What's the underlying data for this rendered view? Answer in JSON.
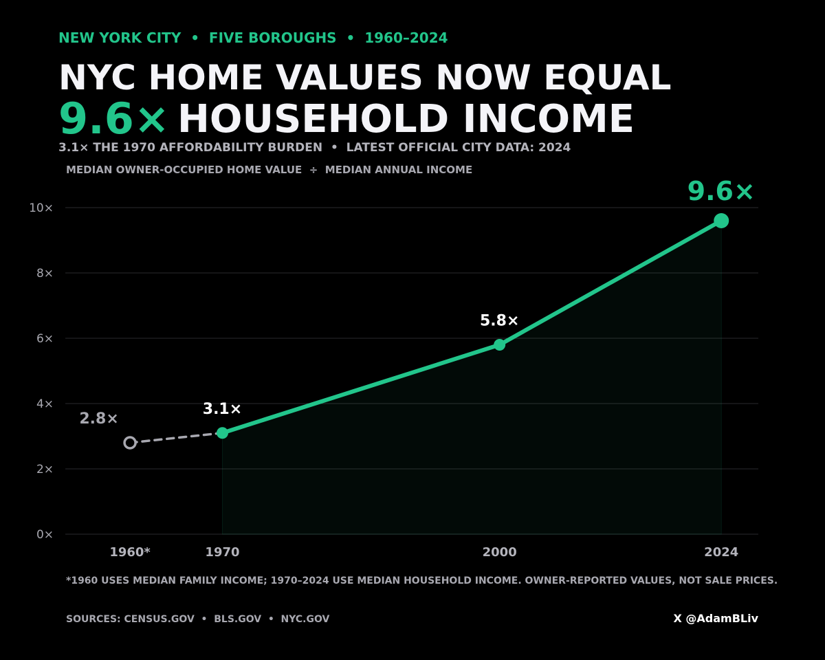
{
  "chart_data": {
    "type": "line",
    "kicker": "NEW YORK CITY  •  FIVE BOROUGHS  •  1960–2024",
    "title": "NYC HOME VALUES NOW EQUAL",
    "title_highlight": "9.6×",
    "title_rest": "HOUSEHOLD INCOME",
    "subtitle": "3.1× THE 1970 AFFORDABILITY BURDEN  •  LATEST OFFICIAL CITY DATA: 2024",
    "y_label": "MEDIAN OWNER-OCCUPIED HOME VALUE  ÷  MEDIAN ANNUAL INCOME",
    "x": [
      1960,
      1970,
      2000,
      2024
    ],
    "values": [
      2.8,
      3.1,
      5.8,
      9.6
    ],
    "value_labels": [
      "2.8×",
      "3.1×",
      "5.8×",
      "9.6×"
    ],
    "color": "#22c58b",
    "point_colors": [
      "#a8a8b0",
      "#22c58b",
      "#22c58b",
      "#22c58b"
    ],
    "label_colors": [
      "#a8a8b0",
      "#ffffff",
      "#ffffff",
      "#22c58b"
    ],
    "xlim": [
      1953,
      2028
    ],
    "xticks": [
      {
        "value": 1960,
        "label": "1960*"
      },
      1970,
      2000,
      2024
    ],
    "ylim": [
      0,
      10
    ],
    "yticks": [
      {
        "value": 0,
        "label": "0×"
      },
      {
        "value": 2,
        "label": "2×"
      },
      {
        "value": 4,
        "label": "4×"
      },
      {
        "value": 6,
        "label": "6×"
      },
      {
        "value": 8,
        "label": "8×"
      },
      {
        "value": 10,
        "label": "10×"
      }
    ],
    "grid": true,
    "footnote": "*1960 USES MEDIAN FAMILY INCOME; 1970–2024 USE MEDIAN HOUSEHOLD INCOME. OWNER-REPORTED VALUES, NOT SALE PRICES.",
    "sources": "SOURCES: CENSUS.GOV  •  BLS.GOV  •  NYC.GOV",
    "handle": "X @AdamBLiv"
  }
}
